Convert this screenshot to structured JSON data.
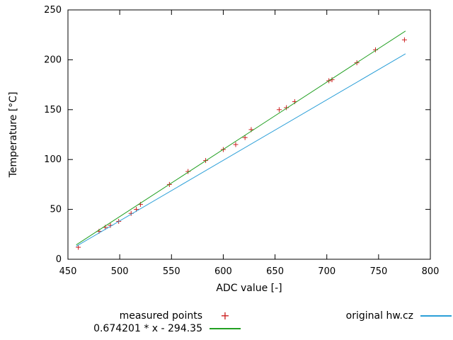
{
  "colors": {
    "measured": "#cc2020",
    "fit": "#22a022",
    "original": "#2b9fd8",
    "axis": "#000000"
  },
  "chart_data": {
    "type": "scatter",
    "title": "",
    "xlabel": "ADC value [-]",
    "ylabel": "Temperature [°C]",
    "xlim": [
      450,
      800
    ],
    "ylim": [
      0,
      250
    ],
    "xticks": [
      450,
      500,
      550,
      600,
      650,
      700,
      750,
      800
    ],
    "yticks": [
      0,
      50,
      100,
      150,
      200,
      250
    ],
    "grid": false,
    "legend_position": "bottom",
    "series": [
      {
        "name": "measured points",
        "type": "points",
        "marker": "+",
        "color": "#cc2020",
        "points": [
          [
            460,
            12
          ],
          [
            480,
            28
          ],
          [
            486,
            32
          ],
          [
            491,
            34
          ],
          [
            499,
            38
          ],
          [
            511,
            46
          ],
          [
            516,
            50
          ],
          [
            520,
            55
          ],
          [
            548,
            75
          ],
          [
            566,
            88
          ],
          [
            583,
            99
          ],
          [
            600,
            110
          ],
          [
            612,
            115
          ],
          [
            621,
            122
          ],
          [
            627,
            130
          ],
          [
            654,
            150
          ],
          [
            661,
            152
          ],
          [
            669,
            158
          ],
          [
            702,
            179
          ],
          [
            705,
            180
          ],
          [
            729,
            197
          ],
          [
            747,
            210
          ],
          [
            775,
            220
          ]
        ]
      },
      {
        "name": "0.674201 * x - 294.35",
        "type": "line",
        "color": "#22a022",
        "fn": {
          "slope": 0.674201,
          "intercept": -294.35,
          "x_range": [
            458,
            776
          ]
        }
      },
      {
        "name": "original hw.cz",
        "type": "line",
        "color": "#2b9fd8",
        "endpoints": [
          [
            458,
            13
          ],
          [
            776,
            206
          ]
        ]
      }
    ]
  }
}
